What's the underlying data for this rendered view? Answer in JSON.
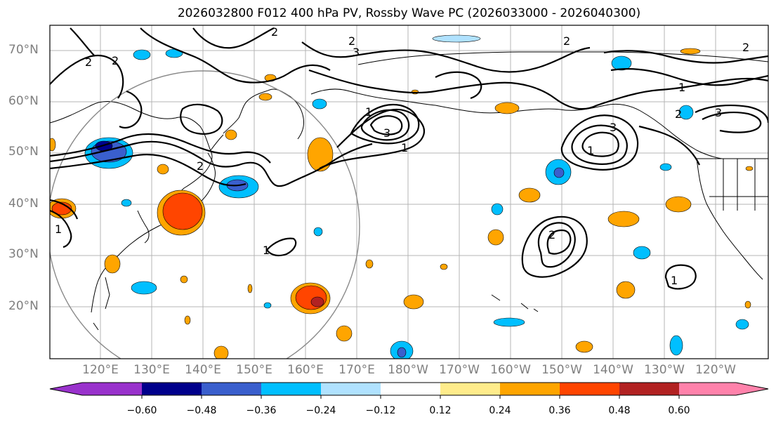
{
  "title": "2026032800 F012 400 hPa PV, Rossby Wave PC (2026033000 - 2026040300)",
  "lat_labels": [
    "70°N",
    "60°N",
    "50°N",
    "40°N",
    "30°N",
    "20°N"
  ],
  "lon_labels": [
    "120°E",
    "130°E",
    "140°E",
    "150°E",
    "160°E",
    "170°E",
    "180°W",
    "170°W",
    "160°W",
    "150°W",
    "140°W",
    "130°W",
    "120°W"
  ],
  "colorbar": {
    "ticks": [
      "−0.60",
      "−0.48",
      "−0.36",
      "−0.24",
      "−0.12",
      "0.12",
      "0.24",
      "0.36",
      "0.48",
      "0.60"
    ],
    "colors": [
      "#9932cc",
      "#00008b",
      "#3a5fcd",
      "#00bfff",
      "#b0e2ff",
      "#ffffff",
      "#ffec8b",
      "#ffa500",
      "#ff4500",
      "#b22222",
      "#ff82ab"
    ]
  },
  "contour_labels": [
    "2",
    "2",
    "2",
    "2",
    "1",
    "3",
    "3",
    "1",
    "2",
    "3",
    "1",
    "2",
    "2",
    "1",
    "3",
    "2",
    "1",
    "1",
    "2",
    "1"
  ]
}
